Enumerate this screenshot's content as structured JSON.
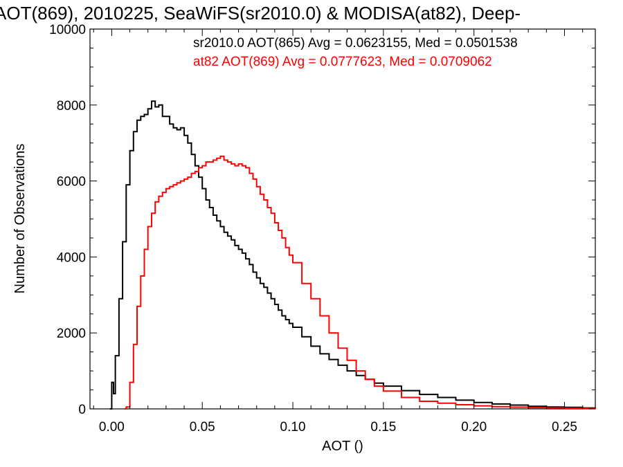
{
  "chart_data": {
    "type": "line",
    "title": "AOT(869), 2010225, SeaWiFS(sr2010.0) & MODISA(at82), Deep-",
    "xlabel": "AOT ()",
    "ylabel": "Number of Observations",
    "xlim": [
      -0.012,
      0.267
    ],
    "ylim": [
      0,
      10000
    ],
    "xticks": [
      0.0,
      0.05,
      0.1,
      0.15,
      0.2,
      0.25
    ],
    "xtick_labels": [
      "0.00",
      "0.05",
      "0.10",
      "0.15",
      "0.20",
      "0.25"
    ],
    "yticks": [
      0,
      2000,
      4000,
      6000,
      8000,
      10000
    ],
    "ytick_labels": [
      "0",
      "2000",
      "4000",
      "6000",
      "8000",
      "10000"
    ],
    "grid": false,
    "annotations": [
      {
        "text": "sr2010.0 AOT(865) Avg = 0.0623155, Med = 0.0501538",
        "color": "#000000"
      },
      {
        "text": "at82 AOT(869) Avg = 0.0777623, Med = 0.0709062",
        "color": "#ff0000"
      }
    ],
    "series": [
      {
        "color": "#000000",
        "x": [
          -0.001,
          0.0,
          0.001,
          0.002,
          0.004,
          0.006,
          0.008,
          0.01,
          0.012,
          0.014,
          0.016,
          0.018,
          0.02,
          0.022,
          0.024,
          0.026,
          0.028,
          0.03,
          0.032,
          0.034,
          0.036,
          0.038,
          0.04,
          0.042,
          0.044,
          0.046,
          0.048,
          0.05,
          0.052,
          0.054,
          0.056,
          0.058,
          0.06,
          0.062,
          0.064,
          0.066,
          0.068,
          0.07,
          0.072,
          0.074,
          0.076,
          0.078,
          0.08,
          0.082,
          0.084,
          0.086,
          0.088,
          0.09,
          0.092,
          0.094,
          0.096,
          0.098,
          0.1,
          0.105,
          0.11,
          0.115,
          0.12,
          0.125,
          0.13,
          0.135,
          0.14,
          0.145,
          0.15,
          0.16,
          0.17,
          0.18,
          0.19,
          0.2,
          0.21,
          0.22,
          0.23,
          0.24,
          0.25,
          0.26,
          0.267
        ],
        "y": [
          0,
          700,
          400,
          1400,
          2900,
          4400,
          5900,
          6800,
          7300,
          7600,
          7700,
          7750,
          7900,
          8100,
          7950,
          8000,
          7700,
          7700,
          7500,
          7400,
          7350,
          7400,
          7200,
          7000,
          6700,
          6400,
          6100,
          5800,
          5500,
          5300,
          5100,
          4950,
          4800,
          4650,
          4550,
          4450,
          4300,
          4200,
          4100,
          3950,
          3800,
          3600,
          3450,
          3300,
          3200,
          3050,
          2900,
          2750,
          2600,
          2450,
          2350,
          2250,
          2150,
          1900,
          1650,
          1450,
          1300,
          1150,
          1000,
          880,
          780,
          680,
          600,
          480,
          380,
          300,
          230,
          170,
          130,
          100,
          70,
          50,
          40,
          25,
          20
        ]
      },
      {
        "color": "#ff0000",
        "x": [
          0.007,
          0.008,
          0.01,
          0.012,
          0.014,
          0.016,
          0.018,
          0.02,
          0.022,
          0.024,
          0.026,
          0.028,
          0.03,
          0.032,
          0.034,
          0.036,
          0.038,
          0.04,
          0.042,
          0.044,
          0.046,
          0.048,
          0.05,
          0.052,
          0.054,
          0.056,
          0.058,
          0.06,
          0.062,
          0.064,
          0.066,
          0.068,
          0.07,
          0.072,
          0.074,
          0.076,
          0.078,
          0.08,
          0.082,
          0.084,
          0.086,
          0.088,
          0.09,
          0.092,
          0.094,
          0.096,
          0.098,
          0.1,
          0.105,
          0.11,
          0.115,
          0.12,
          0.125,
          0.13,
          0.135,
          0.14,
          0.145,
          0.15,
          0.16,
          0.17,
          0.18,
          0.19,
          0.2,
          0.21,
          0.22,
          0.23,
          0.24,
          0.25,
          0.26,
          0.267
        ],
        "y": [
          0,
          50,
          700,
          1700,
          2700,
          3500,
          4200,
          4800,
          5150,
          5450,
          5600,
          5700,
          5800,
          5850,
          5900,
          5950,
          6000,
          6050,
          6100,
          6200,
          6250,
          6350,
          6400,
          6500,
          6500,
          6550,
          6600,
          6650,
          6550,
          6500,
          6450,
          6400,
          6450,
          6400,
          6350,
          6200,
          6050,
          5850,
          5650,
          5500,
          5300,
          5150,
          4900,
          4700,
          4500,
          4250,
          4050,
          3850,
          3300,
          2900,
          2450,
          2000,
          1600,
          1280,
          1000,
          780,
          600,
          470,
          300,
          200,
          150,
          110,
          80,
          60,
          45,
          35,
          25,
          18,
          12,
          8
        ]
      }
    ]
  }
}
